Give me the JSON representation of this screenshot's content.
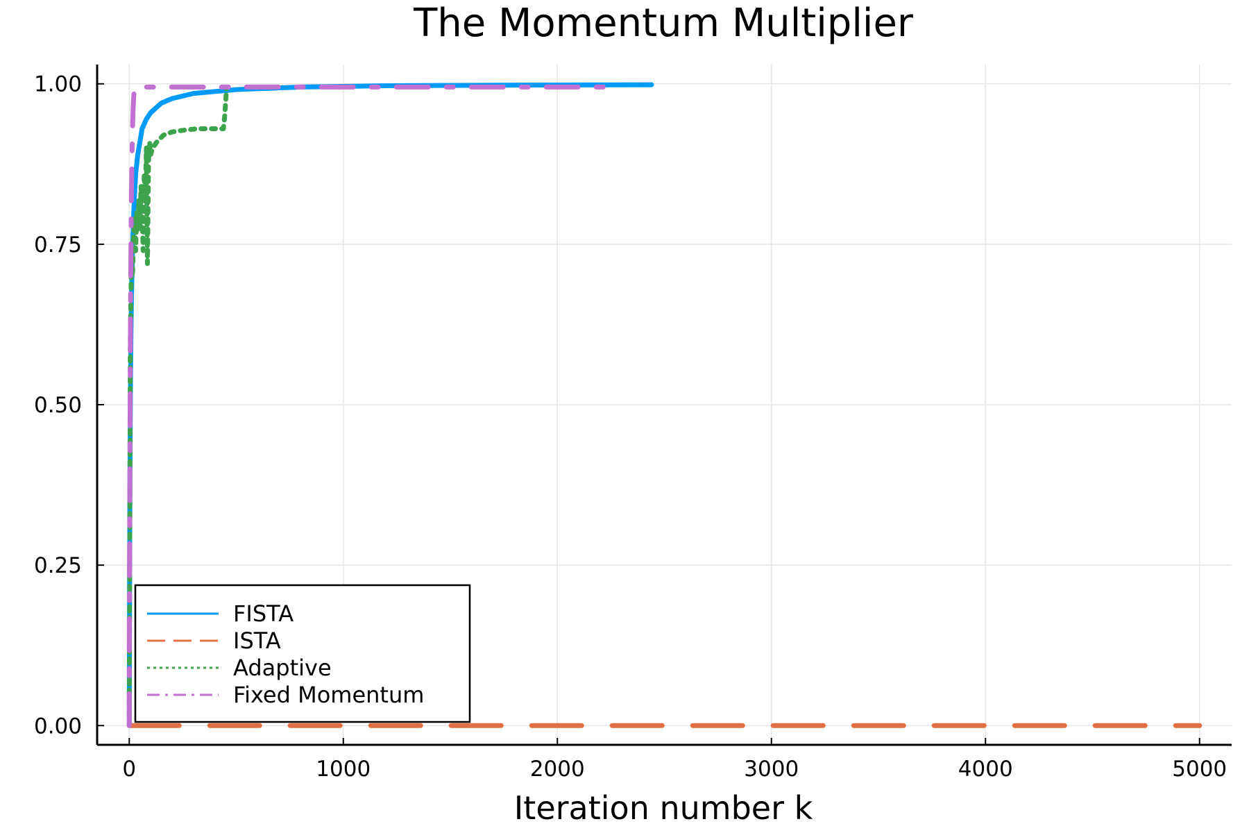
{
  "chart_data": {
    "type": "line",
    "title": "The Momentum Multiplier",
    "xlabel": "Iteration number k",
    "ylabel": "",
    "xlim": [
      -150,
      5150
    ],
    "ylim": [
      -0.03,
      1.03
    ],
    "xticks": [
      0,
      1000,
      2000,
      3000,
      4000,
      5000
    ],
    "xtick_labels": [
      "0",
      "1000",
      "2000",
      "3000",
      "4000",
      "5000"
    ],
    "yticks": [
      0,
      0.25,
      0.5,
      0.75,
      1.0
    ],
    "ytick_labels": [
      "0.00",
      "0.25",
      "0.50",
      "0.75",
      "1.00"
    ],
    "grid": true,
    "legend_position": "bottom-left",
    "series": [
      {
        "name": "FISTA",
        "color": "#009af9",
        "style": "solid",
        "x": [
          0,
          2,
          4,
          6,
          8,
          10,
          15,
          20,
          25,
          30,
          40,
          50,
          60,
          80,
          100,
          150,
          200,
          300,
          500,
          800,
          1200,
          1800,
          2440
        ],
        "y": [
          0.0,
          0.28,
          0.43,
          0.54,
          0.61,
          0.66,
          0.74,
          0.79,
          0.83,
          0.86,
          0.89,
          0.91,
          0.93,
          0.945,
          0.955,
          0.97,
          0.977,
          0.985,
          0.991,
          0.995,
          0.997,
          0.998,
          0.9985
        ]
      },
      {
        "name": "ISTA",
        "color": "#e26f46",
        "style": "dashed",
        "x": [
          0,
          5000
        ],
        "y": [
          0.0,
          0.0
        ]
      },
      {
        "name": "Adaptive",
        "color": "#3da44d",
        "style": "dotted",
        "x": [
          0,
          5,
          10,
          15,
          20,
          25,
          30,
          35,
          40,
          45,
          50,
          55,
          60,
          65,
          70,
          75,
          80,
          85,
          90,
          95,
          100,
          110,
          130,
          160,
          200,
          260,
          320,
          380,
          440,
          446,
          450,
          455
        ],
        "y": [
          0.0,
          0.6,
          0.72,
          0.7,
          0.76,
          0.79,
          0.74,
          0.8,
          0.77,
          0.82,
          0.78,
          0.84,
          0.8,
          0.74,
          0.86,
          0.82,
          0.9,
          0.72,
          0.88,
          0.91,
          0.89,
          0.9,
          0.91,
          0.92,
          0.925,
          0.928,
          0.93,
          0.93,
          0.93,
          0.95,
          0.97,
          0.995
        ]
      },
      {
        "name": "Fixed Momentum",
        "color": "#c271d2",
        "style": "dashdot",
        "x": [
          0,
          0,
          2,
          4,
          6,
          8,
          10,
          12,
          14,
          16,
          18,
          20,
          22,
          25,
          30,
          2270
        ],
        "y": [
          0.0,
          0.1,
          0.3,
          0.5,
          0.65,
          0.75,
          0.82,
          0.87,
          0.91,
          0.94,
          0.96,
          0.975,
          0.985,
          0.99,
          0.995,
          0.995
        ]
      }
    ]
  }
}
